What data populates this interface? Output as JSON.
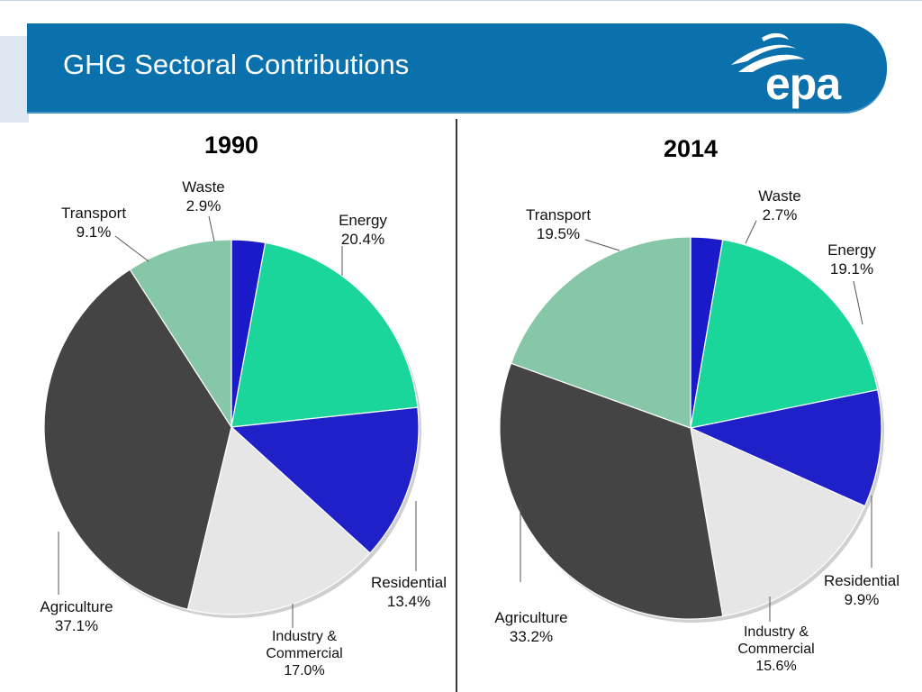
{
  "header": {
    "title": "GHG Sectoral Contributions",
    "logo_text": "epa"
  },
  "colors": {
    "banner": "#0b71ad",
    "waste": "#1a1ac8",
    "energy": "#1bd69a",
    "residential": "#2020c9",
    "industry": "#e6e6e6",
    "agriculture": "#444444",
    "transport": "#86c7a8"
  },
  "chart_data": [
    {
      "type": "pie",
      "title": "1990",
      "slices": [
        {
          "key": "waste",
          "lines": [
            "Waste",
            "2.9%"
          ],
          "value": 2.9
        },
        {
          "key": "energy",
          "lines": [
            "Energy",
            "20.4%"
          ],
          "value": 20.4
        },
        {
          "key": "residential",
          "lines": [
            "Residential",
            "13.4%"
          ],
          "value": 13.4
        },
        {
          "key": "industry",
          "lines": [
            "Industry &",
            "Commercial",
            "17.0%"
          ],
          "value": 17.0
        },
        {
          "key": "agriculture",
          "lines": [
            "Agriculture",
            "37.1%"
          ],
          "value": 37.1
        },
        {
          "key": "transport",
          "lines": [
            "Transport",
            "9.1%"
          ],
          "value": 9.1
        }
      ]
    },
    {
      "type": "pie",
      "title": "2014",
      "slices": [
        {
          "key": "waste",
          "lines": [
            "Waste",
            "2.7%"
          ],
          "value": 2.7
        },
        {
          "key": "energy",
          "lines": [
            "Energy",
            "19.1%"
          ],
          "value": 19.1
        },
        {
          "key": "residential",
          "lines": [
            "Residential",
            "9.9%"
          ],
          "value": 9.9
        },
        {
          "key": "industry",
          "lines": [
            "Industry &",
            "Commercial",
            "15.6%"
          ],
          "value": 15.6
        },
        {
          "key": "agriculture",
          "lines": [
            "Agriculture",
            "33.2%"
          ],
          "value": 33.2
        },
        {
          "key": "transport",
          "lines": [
            "Transport",
            "19.5%"
          ],
          "value": 19.5
        }
      ]
    }
  ]
}
